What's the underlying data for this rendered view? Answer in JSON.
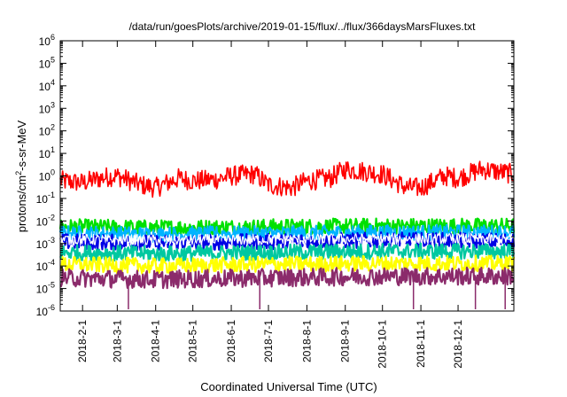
{
  "chart_data": {
    "type": "line",
    "title": "/data/run/goesPlots/archive/2019-01-15/flux/../flux/366daysMarsFluxes.txt",
    "xlabel": "Coordinated Universal Time (UTC)",
    "ylabel": "protons/cm²-s-sr-MeV",
    "ylabel_parts": {
      "main": "protons/cm",
      "sup": "2",
      "rest": "-s-sr-MeV"
    },
    "yscale": "log",
    "ylim": [
      1e-06,
      1000000.0
    ],
    "xlim": [
      "2018-01-14",
      "2019-01-15"
    ],
    "y_ticks": [
      {
        "exp": "-6",
        "base": "10"
      },
      {
        "exp": "-5",
        "base": "10"
      },
      {
        "exp": "-4",
        "base": "10"
      },
      {
        "exp": "-3",
        "base": "10"
      },
      {
        "exp": "-2",
        "base": "10"
      },
      {
        "exp": "-1",
        "base": "10"
      },
      {
        "exp": "0",
        "base": "10"
      },
      {
        "exp": "1",
        "base": "10"
      },
      {
        "exp": "2",
        "base": "10"
      },
      {
        "exp": "3",
        "base": "10"
      },
      {
        "exp": "4",
        "base": "10"
      },
      {
        "exp": "5",
        "base": "10"
      },
      {
        "exp": "6",
        "base": "10"
      }
    ],
    "x_ticks": [
      {
        "date": "2018-02-01",
        "label": "2018-2-1"
      },
      {
        "date": "2018-03-01",
        "label": "2018-3-1"
      },
      {
        "date": "2018-04-01",
        "label": "2018-4-1"
      },
      {
        "date": "2018-05-01",
        "label": "2018-5-1"
      },
      {
        "date": "2018-06-01",
        "label": "2018-6-1"
      },
      {
        "date": "2018-07-01",
        "label": "2018-7-1"
      },
      {
        "date": "2018-08-01",
        "label": "2018-8-1"
      },
      {
        "date": "2018-09-01",
        "label": "2018-9-1"
      },
      {
        "date": "2018-10-01",
        "label": "2018-10-1"
      },
      {
        "date": "2018-11-01",
        "label": "2018-11-1"
      },
      {
        "date": "2018-12-01",
        "label": "2018-12-1"
      }
    ],
    "grid": false,
    "legend": "none",
    "series": [
      {
        "color": "#ff0000",
        "x": [
          "2018-01-14",
          "2018-02-01",
          "2018-02-20",
          "2018-03-01",
          "2018-03-20",
          "2018-04-01",
          "2018-04-20",
          "2018-05-01",
          "2018-05-20",
          "2018-06-01",
          "2018-06-20",
          "2018-07-01",
          "2018-07-20",
          "2018-08-01",
          "2018-08-20",
          "2018-09-01",
          "2018-09-20",
          "2018-10-01",
          "2018-10-20",
          "2018-11-01",
          "2018-11-20",
          "2018-12-01",
          "2018-12-20",
          "2019-01-15"
        ],
        "y": [
          0.6,
          0.5,
          0.9,
          1.0,
          0.4,
          0.3,
          0.8,
          0.6,
          0.7,
          1.0,
          1.2,
          0.4,
          0.3,
          0.6,
          0.8,
          2.0,
          1.5,
          1.2,
          0.3,
          0.3,
          1.0,
          0.8,
          2.0,
          1.2
        ]
      },
      {
        "color": "#00e000",
        "x": [
          "2018-01-14",
          "2018-04-01",
          "2018-07-01",
          "2018-10-01",
          "2019-01-15"
        ],
        "y": [
          0.0055,
          0.005,
          0.0055,
          0.006,
          0.006
        ]
      },
      {
        "color": "#00b4ff",
        "x": [
          "2018-01-14",
          "2018-04-01",
          "2018-07-01",
          "2018-10-01",
          "2019-01-15"
        ],
        "y": [
          0.0028,
          0.0025,
          0.0027,
          0.003,
          0.003
        ]
      },
      {
        "color": "#0000e6",
        "x": [
          "2018-01-14",
          "2018-04-01",
          "2018-07-01",
          "2018-10-01",
          "2019-01-15"
        ],
        "y": [
          0.0012,
          0.0011,
          0.0012,
          0.0014,
          0.0013
        ]
      },
      {
        "color": "#ffffff",
        "x": [
          "2018-01-14",
          "2018-04-01",
          "2018-07-01",
          "2018-10-01",
          "2019-01-15"
        ],
        "y": [
          0.0015,
          0.0014,
          0.0015,
          0.0016,
          0.0016
        ]
      },
      {
        "color": "#00c8a0",
        "x": [
          "2018-01-14",
          "2018-04-01",
          "2018-07-01",
          "2018-10-01",
          "2019-01-15"
        ],
        "y": [
          0.0004,
          0.00035,
          0.0004,
          0.00045,
          0.00045
        ]
      },
      {
        "color": "#ffff00",
        "x": [
          "2018-01-14",
          "2018-04-01",
          "2018-07-01",
          "2018-10-01",
          "2019-01-15"
        ],
        "y": [
          0.00012,
          0.0001,
          0.00012,
          0.00013,
          0.00013
        ]
      },
      {
        "color": "#8b2b6b",
        "x": [
          "2018-01-14",
          "2018-04-01",
          "2018-07-01",
          "2018-10-01",
          "2019-01-15"
        ],
        "y": [
          3e-05,
          2.5e-05,
          3e-05,
          3.5e-05,
          3.5e-05
        ]
      }
    ]
  }
}
